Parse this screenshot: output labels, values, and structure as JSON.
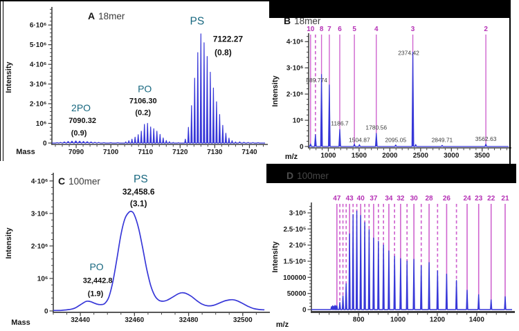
{
  "figure": {
    "background": "#ffffff",
    "colors": {
      "spectrum_blue": "#3737d8",
      "charge_line_magenta": "#cf64cf",
      "charge_label_magenta": "#b52fb5",
      "annotation_teal": "#17677f",
      "value_text": "#111111",
      "axis": "#3f3f3f",
      "peak_label": "#3d3d3d",
      "overlay_black": "#000000",
      "covered_title_gray": "#4a4a4a"
    }
  },
  "chart_data": [
    {
      "panel": "A",
      "type": "line",
      "title_letter": "A",
      "title_text": "18mer",
      "xlabel": "Mass",
      "ylabel": "Intensity",
      "x_domain": [
        7083,
        7144.5
      ],
      "y_domain": [
        0,
        6850000
      ],
      "x_ticks": [
        7090,
        7100,
        7110,
        7120,
        7130,
        7140
      ],
      "x_minor_step": 2,
      "y_ticks": [
        {
          "v": 0,
          "label": "0"
        },
        {
          "v": 1000000,
          "label": "10⁶"
        },
        {
          "v": 2000000,
          "label": "2·10⁶"
        },
        {
          "v": 3000000,
          "label": "3·10⁶"
        },
        {
          "v": 4000000,
          "label": "4·10⁶"
        },
        {
          "v": 5000000,
          "label": "5·10⁶"
        },
        {
          "v": 6000000,
          "label": "6·10⁶"
        }
      ],
      "y_minor_step": 200000,
      "series_style": "spikes",
      "spike_halfwidth": 1.0,
      "peaks": [
        [
          7084.5,
          20000,
          2.2
        ],
        [
          7085.5,
          30000,
          2.2
        ],
        [
          7086.6,
          55000,
          2.2
        ],
        [
          7087.7,
          80000,
          2.2
        ],
        [
          7088.8,
          100000,
          2.2
        ],
        [
          7089.9,
          110000,
          2.2
        ],
        [
          7091.0,
          100000,
          2.2
        ],
        [
          7092.1,
          85000,
          2.2
        ],
        [
          7093.2,
          70000,
          2.2
        ],
        [
          7094.3,
          55000,
          2.2
        ],
        [
          7095.4,
          40000,
          2.2
        ],
        [
          7096.5,
          30000,
          2.2
        ],
        [
          7098.0,
          22000,
          2.2
        ],
        [
          7100.0,
          18000,
          2.2
        ],
        [
          7102.0,
          20000,
          2.2
        ],
        [
          7104.3,
          60000
        ],
        [
          7105.2,
          120000
        ],
        [
          7106.1,
          200000
        ],
        [
          7107.0,
          300000
        ],
        [
          7107.9,
          430000
        ],
        [
          7108.8,
          600000
        ],
        [
          7109.7,
          950000
        ],
        [
          7110.6,
          1000000
        ],
        [
          7111.5,
          820000
        ],
        [
          7112.4,
          730000
        ],
        [
          7113.3,
          600000
        ],
        [
          7114.2,
          440000
        ],
        [
          7115.1,
          260000
        ],
        [
          7116.0,
          130000
        ],
        [
          7116.9,
          70000
        ],
        [
          7118.0,
          30000
        ],
        [
          7119.5,
          22000
        ],
        [
          7121.5,
          200000
        ],
        [
          7122.4,
          800000
        ],
        [
          7123.3,
          1900000
        ],
        [
          7124.2,
          3300000
        ],
        [
          7125.1,
          4600000
        ],
        [
          7126.0,
          5550000
        ],
        [
          7126.9,
          5100000
        ],
        [
          7127.8,
          4400000
        ],
        [
          7128.7,
          3600000
        ],
        [
          7129.6,
          2800000
        ],
        [
          7130.5,
          2100000
        ],
        [
          7131.4,
          1450000
        ],
        [
          7132.3,
          900000
        ],
        [
          7133.2,
          500000
        ],
        [
          7134.1,
          250000
        ],
        [
          7135.0,
          120000
        ],
        [
          7136.0,
          55000
        ],
        [
          7137.2,
          60000,
          1.6
        ],
        [
          7138.4,
          40000,
          1.6
        ],
        [
          7139.6,
          30000,
          1.6
        ],
        [
          7141.0,
          25000,
          1.8
        ],
        [
          7142.5,
          20000,
          1.8
        ]
      ],
      "annotations": [
        {
          "text": "2PO",
          "x": 7091.4,
          "y": 1620000,
          "cls": "teal"
        },
        {
          "text": "7090.32",
          "x": 7091.8,
          "y": 1020000,
          "cls": "val"
        },
        {
          "text": "(0.9)",
          "x": 7090.8,
          "y": 380000,
          "cls": "val"
        },
        {
          "text": "PO",
          "x": 7109.8,
          "y": 2580000,
          "cls": "teal"
        },
        {
          "text": "7106.30",
          "x": 7109.3,
          "y": 2020000,
          "cls": "val"
        },
        {
          "text": "(0.2)",
          "x": 7109.3,
          "y": 1420000,
          "cls": "val"
        },
        {
          "text": "PS",
          "x": 7124.9,
          "y": 6020000,
          "cls": "teal-lg"
        },
        {
          "text": "7122.27",
          "x": 7133.8,
          "y": 5140000,
          "cls": "val-lg"
        },
        {
          "text": "(0.8)",
          "x": 7132.4,
          "y": 4470000,
          "cls": "val-lg"
        }
      ]
    },
    {
      "panel": "B",
      "type": "line",
      "title_letter": "B",
      "title_text": "18mer",
      "xlabel": "m/z",
      "ylabel": "Intensity",
      "x_domain": [
        680,
        3930
      ],
      "y_domain": [
        0,
        4270000
      ],
      "x_ticks": [
        1000,
        1500,
        2000,
        2500,
        3000,
        3500
      ],
      "x_minor_step": 100,
      "y_ticks": [
        {
          "v": 0,
          "label": "0"
        },
        {
          "v": 1000000,
          "label": "10⁶"
        },
        {
          "v": 2000000,
          "label": "2·10⁶"
        },
        {
          "v": 3000000,
          "label": "3·10⁶"
        },
        {
          "v": 4000000,
          "label": "4·10⁶"
        }
      ],
      "y_minor_step": 200000,
      "series_style": "spikes",
      "spike_halfwidth": 1.3,
      "charge_states": [
        {
          "z": "10",
          "mz": 711.2,
          "line": "solid",
          "labeled": true
        },
        {
          "z": "9",
          "mz": 790.4,
          "line": "dashed",
          "labeled": false
        },
        {
          "z": "8",
          "mz": 889.3,
          "line": "solid",
          "labeled": true
        },
        {
          "z": "7",
          "mz": 1016.5,
          "line": "solid",
          "labeled": true
        },
        {
          "z": "6",
          "mz": 1186.0,
          "line": "solid",
          "labeled": true
        },
        {
          "z": "5",
          "mz": 1423.4,
          "line": "solid",
          "labeled": true
        },
        {
          "z": "4",
          "mz": 1779.6,
          "line": "solid",
          "labeled": true
        },
        {
          "z": "3",
          "mz": 2373.1,
          "line": "solid",
          "labeled": true
        },
        {
          "z": "2",
          "mz": 3560.1,
          "line": "solid",
          "labeled": true
        }
      ],
      "peaks": [
        [
          711.2,
          100000
        ],
        [
          790.4,
          450000
        ],
        [
          889.3,
          2750000
        ],
        [
          1016.5,
          2350000
        ],
        [
          1186.0,
          650000
        ],
        [
          1423.4,
          95000
        ],
        [
          1504.9,
          70000
        ],
        [
          1779.6,
          500000
        ],
        [
          2095.1,
          60000
        ],
        [
          2373.1,
          3600000
        ],
        [
          2420.0,
          80000
        ],
        [
          2849.7,
          45000
        ],
        [
          3560.1,
          95000
        ]
      ],
      "peak_labels": [
        {
          "text": "889.774",
          "mz": 889.3,
          "y": 2450000,
          "dx": -7
        },
        {
          "text": "1186.7",
          "mz": 1186.0,
          "y": 800000
        },
        {
          "text": "1504.87",
          "mz": 1504.9,
          "y": 175000
        },
        {
          "text": "1780.56",
          "mz": 1779.6,
          "y": 640000
        },
        {
          "text": "2095.05",
          "mz": 2095.1,
          "y": 175000
        },
        {
          "text": "2374.42",
          "mz": 2373.1,
          "y": 3490000,
          "dx": -6
        },
        {
          "text": "2849.71",
          "mz": 2849.7,
          "y": 175000
        },
        {
          "text": "3562.63",
          "mz": 3560.1,
          "y": 210000
        }
      ],
      "annotations": []
    },
    {
      "panel": "C",
      "type": "line",
      "title_letter": "C",
      "title_text": "100mer",
      "xlabel": "Mass",
      "ylabel": "Intensity",
      "x_domain": [
        32430,
        32509
      ],
      "y_domain": [
        0,
        4210000
      ],
      "x_ticks": [
        32440,
        32460,
        32480,
        32500
      ],
      "x_minor_step": 5,
      "y_ticks": [
        {
          "v": 0,
          "label": "0"
        },
        {
          "v": 1000000,
          "label": "10⁶"
        },
        {
          "v": 2000000,
          "label": "2·10⁶"
        },
        {
          "v": 3000000,
          "label": "3·10⁶"
        },
        {
          "v": 4000000,
          "label": "4·10⁶"
        }
      ],
      "y_minor_step": 200000,
      "series_style": "curve",
      "curve": [
        [
          32430,
          15000
        ],
        [
          32433,
          20000
        ],
        [
          32436,
          45000
        ],
        [
          32438,
          90000
        ],
        [
          32440,
          190000
        ],
        [
          32442,
          290000
        ],
        [
          32443,
          300000
        ],
        [
          32444,
          280000
        ],
        [
          32446,
          215000
        ],
        [
          32447.5,
          195000
        ],
        [
          32449,
          230000
        ],
        [
          32450.5,
          420000
        ],
        [
          32452,
          900000
        ],
        [
          32453.5,
          1600000
        ],
        [
          32455,
          2350000
        ],
        [
          32456.5,
          2850000
        ],
        [
          32458,
          3040000
        ],
        [
          32459,
          3060000
        ],
        [
          32460,
          2950000
        ],
        [
          32461.5,
          2550000
        ],
        [
          32463,
          1950000
        ],
        [
          32464.5,
          1300000
        ],
        [
          32466,
          780000
        ],
        [
          32467.5,
          470000
        ],
        [
          32469,
          330000
        ],
        [
          32470.5,
          300000
        ],
        [
          32472,
          330000
        ],
        [
          32474,
          420000
        ],
        [
          32476,
          520000
        ],
        [
          32477.5,
          560000
        ],
        [
          32479,
          540000
        ],
        [
          32481,
          450000
        ],
        [
          32483,
          320000
        ],
        [
          32485,
          210000
        ],
        [
          32487,
          160000
        ],
        [
          32489,
          170000
        ],
        [
          32491,
          230000
        ],
        [
          32493,
          300000
        ],
        [
          32495,
          340000
        ],
        [
          32496.5,
          345000
        ],
        [
          32498,
          310000
        ],
        [
          32500,
          230000
        ],
        [
          32502,
          140000
        ],
        [
          32504,
          75000
        ],
        [
          32506,
          45000
        ],
        [
          32508,
          35000
        ]
      ],
      "annotations": [
        {
          "text": "PS",
          "x": 32462.3,
          "y": 3950000,
          "cls": "teal-lg"
        },
        {
          "text": "32,458.6",
          "x": 32461.5,
          "y": 3580000,
          "cls": "val-lg"
        },
        {
          "text": "(3.1)",
          "x": 32461.5,
          "y": 3220000,
          "cls": "val-lg"
        },
        {
          "text": "PO",
          "x": 32446,
          "y": 1250000,
          "cls": "teal"
        },
        {
          "text": "32,442.8",
          "x": 32446.4,
          "y": 860000,
          "cls": "val"
        },
        {
          "text": "(1.9)",
          "x": 32445.6,
          "y": 460000,
          "cls": "val"
        }
      ]
    },
    {
      "panel": "D",
      "type": "line",
      "title_letter": "D",
      "title_text": "100mer",
      "xlabel": "m/z",
      "ylabel": "Intensity",
      "x_domain": [
        560,
        1580
      ],
      "y_domain": [
        0,
        328000
      ],
      "x_ticks": [
        800,
        1000,
        1200,
        1400
      ],
      "x_minor_step": 50,
      "y_ticks": [
        {
          "v": 0,
          "label": "0"
        },
        {
          "v": 50000,
          "label": "50000"
        },
        {
          "v": 100000,
          "label": "100000"
        },
        {
          "v": 150000,
          "label": "1.5·10⁵"
        },
        {
          "v": 200000,
          "label": "2·10⁵"
        },
        {
          "v": 250000,
          "label": "2.5·10⁵"
        },
        {
          "v": 300000,
          "label": "3·10⁵"
        }
      ],
      "y_minor_step": 10000,
      "series_style": "spikes",
      "spike_halfwidth": 1.0,
      "charge_states": [
        {
          "z": "47",
          "mz": 689.6,
          "line": "solid",
          "labeled": true
        },
        {
          "z": "46",
          "mz": 704.6,
          "line": "dashed",
          "labeled": false
        },
        {
          "z": "45",
          "mz": 720.3,
          "line": "dashed",
          "labeled": false
        },
        {
          "z": "44",
          "mz": 736.7,
          "line": "dashed",
          "labeled": false
        },
        {
          "z": "43",
          "mz": 753.9,
          "line": "solid",
          "labeled": true
        },
        {
          "z": "42",
          "mz": 771.8,
          "line": "dashed",
          "labeled": false
        },
        {
          "z": "41",
          "mz": 790.7,
          "line": "dashed",
          "labeled": false
        },
        {
          "z": "40",
          "mz": 810.5,
          "line": "solid",
          "labeled": true
        },
        {
          "z": "39",
          "mz": 831.3,
          "line": "dashed",
          "labeled": false
        },
        {
          "z": "38",
          "mz": 853.2,
          "line": "dashed",
          "labeled": false
        },
        {
          "z": "37",
          "mz": 876.3,
          "line": "solid",
          "labeled": true
        },
        {
          "z": "36",
          "mz": 900.6,
          "line": "dashed",
          "labeled": false
        },
        {
          "z": "35",
          "mz": 926.4,
          "line": "dashed",
          "labeled": false
        },
        {
          "z": "34",
          "mz": 953.7,
          "line": "solid",
          "labeled": true
        },
        {
          "z": "33",
          "mz": 982.6,
          "line": "dashed",
          "labeled": false
        },
        {
          "z": "32",
          "mz": 1013.3,
          "line": "solid",
          "labeled": true
        },
        {
          "z": "31",
          "mz": 1046.1,
          "line": "dashed",
          "labeled": false
        },
        {
          "z": "30",
          "mz": 1081.0,
          "line": "solid",
          "labeled": true
        },
        {
          "z": "29",
          "mz": 1118.3,
          "line": "dashed",
          "labeled": false
        },
        {
          "z": "28",
          "mz": 1158.2,
          "line": "solid",
          "labeled": true
        },
        {
          "z": "27",
          "mz": 1201.2,
          "line": "dashed",
          "labeled": false
        },
        {
          "z": "26",
          "mz": 1247.4,
          "line": "solid",
          "labeled": true
        },
        {
          "z": "25",
          "mz": 1297.3,
          "line": "dashed",
          "labeled": false
        },
        {
          "z": "24",
          "mz": 1351.4,
          "line": "solid",
          "labeled": true
        },
        {
          "z": "23",
          "mz": 1410.2,
          "line": "solid",
          "labeled": true
        },
        {
          "z": "22",
          "mz": 1473.5,
          "line": "solid",
          "labeled": true
        },
        {
          "z": "21",
          "mz": 1544.7,
          "line": "solid",
          "labeled": true
        }
      ],
      "peaks": [
        [
          662,
          9000
        ],
        [
          668,
          12000
        ],
        [
          674,
          10000
        ],
        [
          680,
          13000
        ],
        [
          685,
          11000
        ],
        [
          689.6,
          12000
        ],
        [
          704.6,
          22000
        ],
        [
          720.3,
          42000
        ],
        [
          736.7,
          80000
        ],
        [
          753.9,
          235000
        ],
        [
          771.8,
          295000
        ],
        [
          790.7,
          305000
        ],
        [
          810.5,
          292000
        ],
        [
          831.3,
          270000
        ],
        [
          853.2,
          248000
        ],
        [
          876.3,
          222000
        ],
        [
          900.6,
          212000
        ],
        [
          926.4,
          200000
        ],
        [
          953.7,
          182000
        ],
        [
          982.6,
          165000
        ],
        [
          1013.3,
          158000
        ],
        [
          1046.1,
          150000
        ],
        [
          1081.0,
          156000
        ],
        [
          1118.3,
          136000
        ],
        [
          1158.2,
          146000
        ],
        [
          1201.2,
          120000
        ],
        [
          1247.4,
          110000
        ],
        [
          1297.3,
          90000
        ],
        [
          1351.4,
          60000
        ],
        [
          1410.2,
          46000
        ],
        [
          1473.5,
          30000
        ],
        [
          1544.7,
          40000
        ]
      ],
      "peak_labels": [],
      "annotations": []
    }
  ]
}
